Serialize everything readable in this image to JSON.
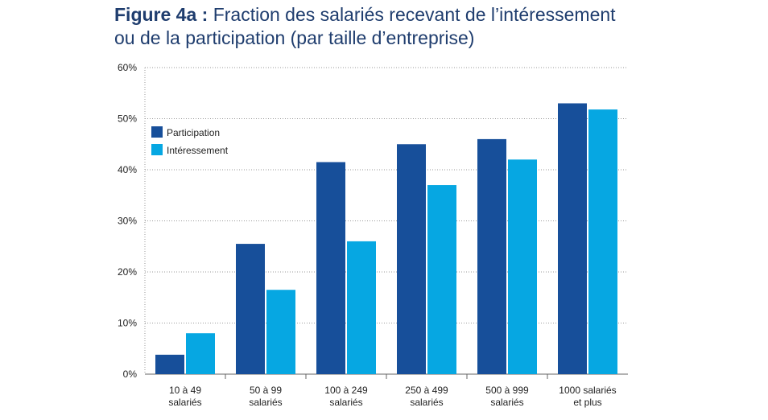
{
  "title": {
    "figure_label": "Figure 4a :",
    "line1": "Fraction des salariés recevant de l’intéressement",
    "line2": "ou de la participation (par taille d’entreprise)"
  },
  "chart_data": {
    "type": "bar",
    "title": "Figure 4a : Fraction des salariés recevant de l’intéressement ou de la participation (par taille d’entreprise)",
    "categories": [
      [
        "10 à 49",
        "salariés"
      ],
      [
        "50 à 99",
        "salariés"
      ],
      [
        "100 à 249",
        "salariés"
      ],
      [
        "250 à 499",
        "salariés"
      ],
      [
        "500 à 999",
        "salariés"
      ],
      [
        "1000 salariés",
        "et plus"
      ]
    ],
    "series": [
      {
        "name": "Participation",
        "color": "#174f9a",
        "values": [
          3.8,
          25.5,
          41.5,
          45,
          46,
          53
        ]
      },
      {
        "name": "Intéressement",
        "color": "#06a7e2",
        "values": [
          8,
          16.5,
          26,
          37,
          42,
          51.8
        ]
      }
    ],
    "ylim": [
      0,
      60
    ],
    "yticks": [
      0,
      10,
      20,
      30,
      40,
      50,
      60
    ],
    "ytick_labels": [
      "0%",
      "10%",
      "20%",
      "30%",
      "40%",
      "50%",
      "60%"
    ],
    "xlabel": "",
    "ylabel": "",
    "grid": "horizontal dotted",
    "legend_position": "top-left"
  }
}
